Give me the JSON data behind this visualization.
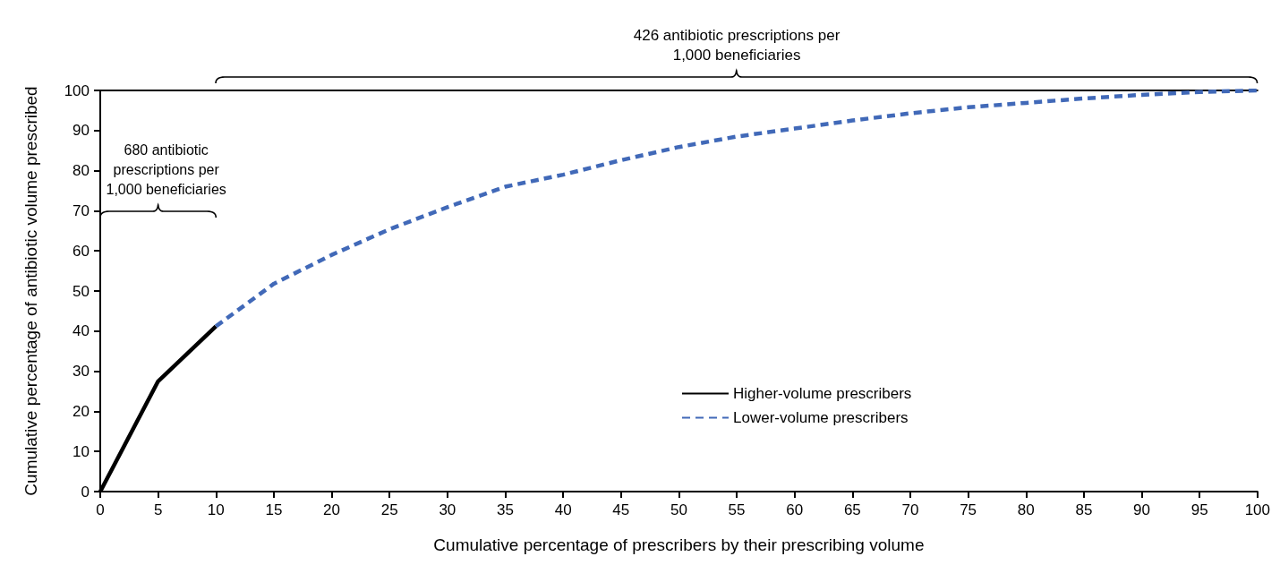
{
  "chart_data": {
    "type": "line",
    "xlabel": "Cumulative percentage of prescribers by their prescribing volume",
    "ylabel": "Cumulative percentage of antibiotic volume prescribed",
    "series": [
      {
        "name": "Higher-volume prescribers",
        "color": "#000000",
        "line_style": "solid",
        "x": [
          0,
          5,
          10
        ],
        "values": [
          0,
          27.5,
          41.2
        ]
      },
      {
        "name": "Lower-volume prescribers",
        "color": "#4169b8",
        "line_style": "dashed",
        "x": [
          10,
          15,
          20,
          25,
          30,
          35,
          40,
          45,
          50,
          55,
          60,
          65,
          70,
          75,
          80,
          85,
          90,
          95,
          100
        ],
        "values": [
          41.2,
          51.8,
          59,
          65.4,
          70.9,
          76,
          79,
          82.6,
          85.9,
          88.5,
          90.5,
          92.5,
          94.3,
          95.8,
          96.9,
          98,
          98.9,
          99.6,
          100
        ]
      }
    ],
    "xlim": [
      0,
      100
    ],
    "xticks": [
      0,
      5,
      10,
      15,
      20,
      25,
      30,
      35,
      40,
      45,
      50,
      55,
      60,
      65,
      70,
      75,
      80,
      85,
      90,
      95,
      100
    ],
    "ylim": [
      0,
      100
    ],
    "yticks": [
      0,
      10,
      20,
      30,
      40,
      50,
      60,
      70,
      80,
      90,
      100
    ],
    "grid": false,
    "legend": "right",
    "marker": "none",
    "annotations": [
      "680 antibiotic prescriptions per 1,000 beneficiaries",
      "426 antibiotic prescriptions per 1,000 beneficiaries"
    ]
  }
}
